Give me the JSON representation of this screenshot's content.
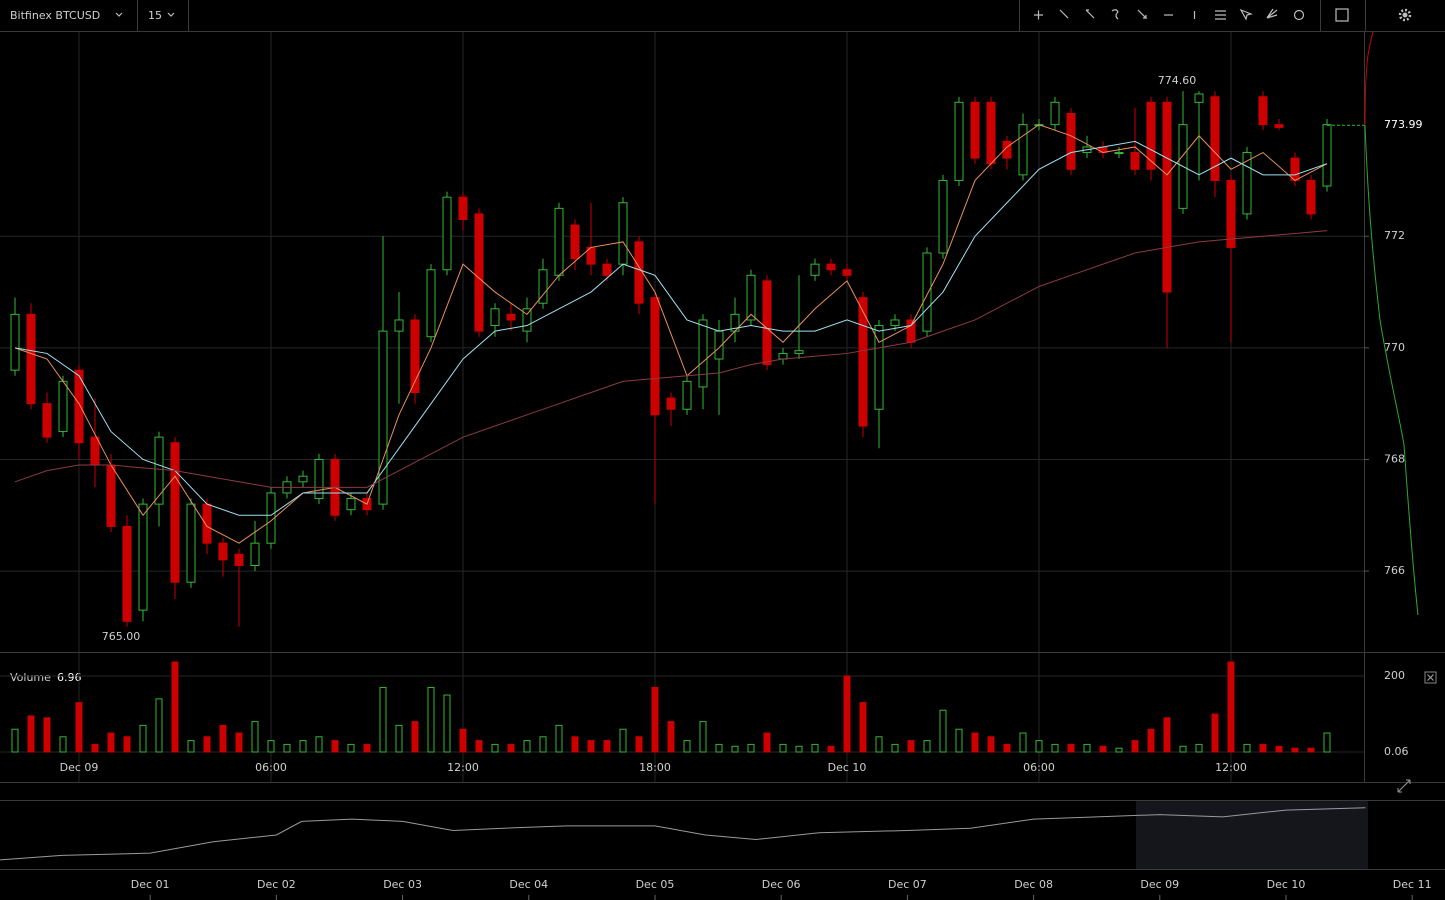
{
  "toolbar": {
    "symbol": "Bitfinex BTCUSD",
    "interval": "15"
  },
  "chart_data": [
    {
      "type": "candlestick",
      "up_color": "#33b833",
      "down_color": "#cc0000",
      "categories": [
        null,
        null,
        null,
        null,
        "Dec 09",
        null,
        null,
        null,
        null,
        null,
        null,
        null,
        null,
        null,
        null,
        null,
        "06:00",
        null,
        null,
        null,
        null,
        null,
        null,
        null,
        null,
        null,
        null,
        null,
        "12:00",
        null,
        null,
        null,
        null,
        null,
        null,
        null,
        null,
        null,
        null,
        null,
        "18:00",
        null,
        null,
        null,
        null,
        null,
        null,
        null,
        null,
        null,
        null,
        null,
        "Dec 10",
        null,
        null,
        null,
        null,
        null,
        null,
        null,
        null,
        null,
        null,
        null,
        "06:00",
        null,
        null,
        null,
        null,
        null,
        null,
        null,
        null,
        null,
        null,
        null,
        "12:00",
        null,
        null,
        null,
        null,
        null,
        null
      ],
      "open": [
        769.6,
        770.6,
        769.0,
        768.5,
        769.6,
        768.4,
        767.9,
        766.8,
        765.3,
        767.2,
        768.3,
        765.8,
        767.2,
        766.5,
        766.3,
        766.1,
        766.5,
        767.4,
        767.6,
        767.3,
        768.0,
        767.1,
        767.3,
        767.2,
        770.3,
        770.5,
        770.2,
        771.4,
        772.7,
        772.4,
        770.4,
        770.6,
        770.3,
        770.8,
        771.3,
        772.2,
        771.8,
        771.5,
        771.5,
        771.9,
        770.9,
        769.1,
        768.9,
        769.3,
        769.8,
        770.3,
        770.5,
        771.2,
        769.8,
        769.9,
        771.3,
        771.5,
        771.4,
        770.9,
        768.9,
        770.4,
        770.5,
        770.3,
        771.7,
        773.0,
        774.4,
        774.4,
        773.7,
        773.1,
        774.0,
        774.0,
        774.2,
        773.5,
        773.6,
        773.5,
        773.5,
        774.4,
        774.4,
        772.5,
        774.4,
        774.5,
        773.0,
        772.4,
        774.5,
        774.0,
        773.4,
        773.0,
        772.9
      ],
      "high": [
        770.9,
        770.8,
        769.2,
        769.5,
        769.7,
        769.1,
        768.1,
        767.0,
        767.3,
        768.5,
        768.4,
        767.3,
        767.3,
        766.6,
        766.4,
        766.9,
        767.5,
        767.7,
        767.8,
        768.1,
        768.1,
        767.4,
        767.4,
        772.0,
        771.0,
        770.6,
        771.5,
        772.8,
        772.8,
        772.5,
        770.8,
        770.8,
        770.9,
        771.6,
        772.6,
        772.3,
        772.6,
        771.6,
        772.7,
        772.0,
        771.0,
        769.2,
        769.5,
        770.6,
        770.5,
        770.9,
        771.4,
        771.3,
        770.0,
        771.3,
        771.6,
        771.6,
        771.5,
        771.0,
        770.5,
        770.6,
        770.6,
        771.8,
        773.1,
        774.5,
        774.5,
        774.5,
        773.8,
        774.2,
        774.1,
        774.5,
        774.3,
        773.8,
        773.7,
        773.6,
        774.3,
        774.5,
        774.5,
        774.6,
        774.6,
        774.6,
        773.1,
        773.6,
        774.6,
        774.1,
        773.5,
        773.1,
        774.1
      ],
      "low": [
        769.5,
        768.9,
        768.3,
        768.4,
        768.0,
        767.5,
        766.7,
        765.0,
        765.1,
        766.8,
        765.5,
        765.7,
        766.3,
        765.9,
        765.0,
        766.0,
        766.4,
        767.3,
        767.5,
        767.2,
        766.9,
        767.0,
        767.0,
        767.1,
        769.0,
        769.0,
        770.1,
        771.3,
        772.1,
        770.2,
        770.2,
        770.3,
        770.1,
        770.7,
        771.2,
        771.4,
        771.3,
        771.2,
        771.3,
        770.6,
        767.2,
        768.6,
        768.8,
        768.9,
        768.8,
        770.1,
        770.4,
        769.6,
        769.7,
        769.8,
        771.2,
        771.3,
        771.2,
        768.4,
        768.2,
        770.3,
        770.0,
        770.2,
        771.6,
        772.9,
        773.3,
        773.2,
        773.2,
        773.0,
        773.9,
        773.9,
        773.1,
        773.4,
        773.4,
        773.4,
        773.1,
        773.0,
        770.0,
        772.4,
        773.0,
        772.7,
        770.1,
        772.3,
        773.9,
        773.9,
        772.9,
        772.3,
        772.8
      ],
      "close": [
        770.6,
        769.0,
        768.4,
        769.4,
        768.3,
        767.9,
        766.8,
        765.1,
        767.2,
        768.4,
        765.8,
        767.2,
        766.5,
        766.2,
        766.1,
        766.5,
        767.4,
        767.6,
        767.7,
        768.0,
        767.0,
        767.3,
        767.1,
        770.3,
        770.5,
        769.2,
        771.4,
        772.7,
        772.3,
        770.3,
        770.7,
        770.5,
        770.7,
        771.4,
        772.5,
        771.6,
        771.5,
        771.3,
        772.6,
        770.8,
        768.8,
        768.9,
        769.4,
        770.5,
        770.3,
        770.6,
        771.3,
        769.7,
        769.9,
        769.95,
        771.5,
        771.4,
        771.3,
        768.6,
        770.4,
        770.5,
        770.1,
        771.7,
        773.0,
        774.4,
        773.4,
        773.3,
        773.4,
        774.0,
        774.0,
        774.4,
        773.2,
        773.6,
        773.5,
        773.5,
        773.2,
        773.2,
        771.0,
        774.0,
        774.55,
        773.0,
        771.8,
        773.5,
        774.0,
        773.95,
        773.0,
        772.4,
        774.0
      ],
      "overlay_x": [
        0,
        2,
        4,
        6,
        8,
        10,
        12,
        14,
        16,
        18,
        20,
        22,
        24,
        26,
        28,
        30,
        32,
        34,
        36,
        38,
        40,
        42,
        44,
        46,
        48,
        50,
        52,
        54,
        56,
        58,
        60,
        62,
        64,
        66,
        68,
        70,
        72,
        74,
        76,
        78,
        80,
        82
      ],
      "overlays": [
        {
          "color": "#e8905a",
          "values": [
            770.0,
            769.8,
            769.0,
            767.9,
            767.0,
            767.7,
            766.8,
            766.5,
            766.9,
            767.4,
            767.5,
            767.2,
            768.8,
            770.0,
            771.5,
            771.0,
            770.6,
            771.3,
            771.8,
            771.9,
            771.0,
            769.5,
            770.0,
            770.6,
            770.1,
            770.7,
            771.2,
            770.1,
            770.4,
            771.5,
            773.0,
            773.6,
            774.0,
            773.8,
            773.5,
            773.6,
            773.1,
            773.8,
            773.2,
            773.5,
            773.0,
            773.3
          ]
        },
        {
          "color": "#9fe0f0",
          "values": [
            770.0,
            769.9,
            769.5,
            768.5,
            768.0,
            767.8,
            767.2,
            767.0,
            767.0,
            767.4,
            767.4,
            767.4,
            768.2,
            769.0,
            769.8,
            770.3,
            770.4,
            770.7,
            771.0,
            771.5,
            771.3,
            770.5,
            770.3,
            770.4,
            770.3,
            770.3,
            770.5,
            770.3,
            770.4,
            771.0,
            772.0,
            772.6,
            773.2,
            773.5,
            773.6,
            773.7,
            773.4,
            773.1,
            773.4,
            773.1,
            773.1,
            773.3
          ]
        },
        {
          "color": "#8c3a44",
          "values": [
            767.6,
            767.8,
            767.9,
            767.9,
            767.85,
            767.8,
            767.7,
            767.6,
            767.5,
            767.5,
            767.5,
            767.5,
            767.8,
            768.1,
            768.4,
            768.6,
            768.8,
            769.0,
            769.2,
            769.4,
            769.45,
            769.5,
            769.55,
            769.7,
            769.8,
            769.85,
            769.9,
            770.0,
            770.1,
            770.3,
            770.5,
            770.8,
            771.1,
            771.3,
            771.5,
            771.7,
            771.8,
            771.9,
            771.95,
            772.0,
            772.05,
            772.1
          ]
        }
      ],
      "ylim": [
        764.55,
        775.66
      ],
      "yticks": [
        766,
        768,
        770,
        772
      ],
      "grid": true,
      "last_price": 773.99,
      "annotations": [
        {
          "value": 774.6,
          "label": "774.60"
        },
        {
          "value": 765.0,
          "label": "765.00"
        }
      ]
    },
    {
      "type": "bar",
      "label": "Volume",
      "last_value": 6.96,
      "values": [
        60,
        95,
        90,
        40,
        130,
        20,
        50,
        40,
        70,
        140,
        237,
        30,
        40,
        70,
        50,
        80,
        30,
        20,
        30,
        40,
        30,
        20,
        20,
        170,
        70,
        80,
        170,
        150,
        60,
        30,
        20,
        20,
        30,
        40,
        70,
        40,
        30,
        30,
        60,
        40,
        170,
        80,
        30,
        80,
        20,
        15,
        20,
        50,
        20,
        15,
        20,
        15,
        200,
        130,
        40,
        20,
        30,
        30,
        110,
        60,
        50,
        40,
        20,
        50,
        30,
        20,
        20,
        20,
        15,
        10,
        30,
        60,
        90,
        15,
        20,
        100,
        237,
        20,
        20,
        15,
        10,
        10,
        50
      ],
      "ylim": [
        0,
        237
      ],
      "yticks": [
        0.06,
        200
      ]
    },
    {
      "type": "line",
      "color": "#9a9a9a",
      "x": [
        -0.19,
        0.3,
        1.0,
        1.5,
        2.0,
        2.2,
        2.6,
        3.0,
        3.4,
        3.8,
        4.3,
        5.0,
        5.4,
        5.8,
        6.3,
        7.0,
        7.5,
        8.0,
        8.5,
        9.0,
        9.5,
        10.0,
        10.63
      ],
      "values": [
        749,
        751,
        752,
        757,
        760,
        766,
        767,
        766,
        762,
        763,
        764,
        764,
        760,
        758,
        761,
        762,
        763,
        767,
        768,
        769,
        768,
        771,
        772
      ],
      "xlim": [
        -0.19,
        11.26
      ],
      "ylim": [
        745,
        775
      ],
      "xticks": [
        {
          "value": 1,
          "label": "Dec 01"
        },
        {
          "value": 2,
          "label": "Dec 02"
        },
        {
          "value": 3,
          "label": "Dec 03"
        },
        {
          "value": 4,
          "label": "Dec 04"
        },
        {
          "value": 5,
          "label": "Dec 05"
        },
        {
          "value": 6,
          "label": "Dec 06"
        },
        {
          "value": 7,
          "label": "Dec 07"
        },
        {
          "value": 8,
          "label": "Dec 08"
        },
        {
          "value": 9,
          "label": "Dec 09"
        },
        {
          "value": 10,
          "label": "Dec 10"
        },
        {
          "value": 11,
          "label": "Dec 11"
        }
      ]
    }
  ]
}
